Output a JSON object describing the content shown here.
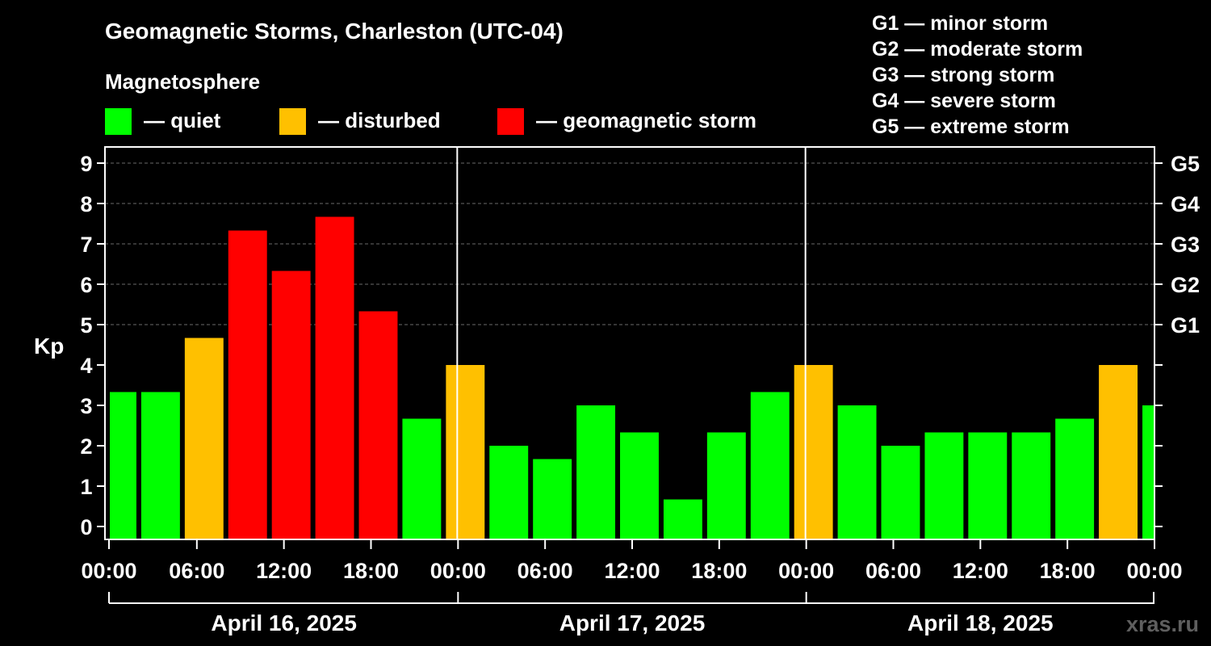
{
  "chart_data": {
    "type": "bar",
    "title": "Geomagnetic Storms, Charleston (UTC-04)",
    "legend_title": "Magnetosphere",
    "legend": [
      {
        "key": "quiet",
        "label": "— quiet",
        "color": "#00ff00"
      },
      {
        "key": "disturbed",
        "label": "— disturbed",
        "color": "#ffc000"
      },
      {
        "key": "storm",
        "label": "— geomagnetic storm",
        "color": "#ff0000"
      }
    ],
    "storm_scale": [
      "G1 — minor storm",
      "G2 — moderate storm",
      "G3 — strong storm",
      "G4 — severe storm",
      "G5 — extreme storm"
    ],
    "ylabel": "Kp",
    "ylim": [
      0,
      9
    ],
    "yticks": [
      "0",
      "1",
      "2",
      "3",
      "4",
      "5",
      "6",
      "7",
      "8",
      "9"
    ],
    "g_levels": [
      {
        "label": "G1",
        "kp": 5
      },
      {
        "label": "G2",
        "kp": 6
      },
      {
        "label": "G3",
        "kp": 7
      },
      {
        "label": "G4",
        "kp": 8
      },
      {
        "label": "G5",
        "kp": 9
      }
    ],
    "x_range_hours": [
      0,
      72
    ],
    "xticks": [
      "00:00",
      "06:00",
      "12:00",
      "18:00",
      "00:00",
      "06:00",
      "12:00",
      "18:00",
      "00:00",
      "06:00",
      "12:00",
      "18:00",
      "00:00"
    ],
    "dates": [
      "April 16, 2025",
      "April 17, 2025",
      "April 18, 2025"
    ],
    "bars": [
      {
        "start": 0,
        "end": 2,
        "kp": 3.33,
        "status": "quiet"
      },
      {
        "start": 2,
        "end": 5,
        "kp": 3.33,
        "status": "quiet"
      },
      {
        "start": 5,
        "end": 8,
        "kp": 4.67,
        "status": "disturbed"
      },
      {
        "start": 8,
        "end": 11,
        "kp": 7.33,
        "status": "storm"
      },
      {
        "start": 11,
        "end": 14,
        "kp": 6.33,
        "status": "storm"
      },
      {
        "start": 14,
        "end": 17,
        "kp": 7.67,
        "status": "storm"
      },
      {
        "start": 17,
        "end": 20,
        "kp": 5.33,
        "status": "storm"
      },
      {
        "start": 20,
        "end": 23,
        "kp": 2.67,
        "status": "quiet"
      },
      {
        "start": 23,
        "end": 26,
        "kp": 4.0,
        "status": "disturbed"
      },
      {
        "start": 26,
        "end": 29,
        "kp": 2.0,
        "status": "quiet"
      },
      {
        "start": 29,
        "end": 32,
        "kp": 1.67,
        "status": "quiet"
      },
      {
        "start": 32,
        "end": 35,
        "kp": 3.0,
        "status": "quiet"
      },
      {
        "start": 35,
        "end": 38,
        "kp": 2.33,
        "status": "quiet"
      },
      {
        "start": 38,
        "end": 41,
        "kp": 0.67,
        "status": "quiet"
      },
      {
        "start": 41,
        "end": 44,
        "kp": 2.33,
        "status": "quiet"
      },
      {
        "start": 44,
        "end": 47,
        "kp": 3.33,
        "status": "quiet"
      },
      {
        "start": 47,
        "end": 50,
        "kp": 4.0,
        "status": "disturbed"
      },
      {
        "start": 50,
        "end": 53,
        "kp": 3.0,
        "status": "quiet"
      },
      {
        "start": 53,
        "end": 56,
        "kp": 2.0,
        "status": "quiet"
      },
      {
        "start": 56,
        "end": 59,
        "kp": 2.33,
        "status": "quiet"
      },
      {
        "start": 59,
        "end": 62,
        "kp": 2.33,
        "status": "quiet"
      },
      {
        "start": 62,
        "end": 65,
        "kp": 2.33,
        "status": "quiet"
      },
      {
        "start": 65,
        "end": 68,
        "kp": 2.67,
        "status": "quiet"
      },
      {
        "start": 68,
        "end": 71,
        "kp": 4.0,
        "status": "disturbed"
      },
      {
        "start": 71,
        "end": 72,
        "kp": 3.0,
        "status": "quiet"
      }
    ],
    "watermark": "xras.ru"
  }
}
